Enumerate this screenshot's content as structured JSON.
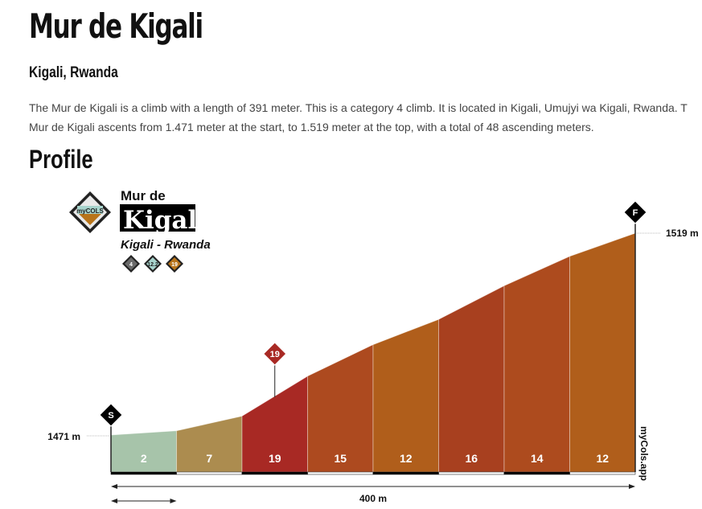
{
  "title": "Mur de Kigali",
  "location": "Kigali, Rwanda",
  "description": [
    "The Mur de Kigali is a climb with a length of 391 meter. This is a category 4 climb. It is located in Kigali, Umujyi wa Kigali, Rwanda. T",
    "Mur de Kigali ascents from 1.471 meter at the start, to 1.519 meter at the top, with a total of 48 ascending meters."
  ],
  "profile_heading": "Profile",
  "card": {
    "line1": "Mur de",
    "line2": "Kigali",
    "subtitle": "Kigali - Rwanda",
    "logo": "myCOLS",
    "badges": [
      {
        "text": "4",
        "color": "#6b6b6b"
      },
      {
        "text": "12.2",
        "color": "#a7d3cc"
      },
      {
        "text": "19",
        "color": "#b8741a"
      }
    ]
  },
  "chart_data": {
    "type": "area",
    "title": "Mur de Kigali",
    "distance_label": "400 m",
    "start_elevation_label": "1471 m",
    "end_elevation_label": "1519 m",
    "start_marker": "S",
    "finish_marker": "F",
    "max_gradient_marker": "19",
    "watermark": "myCols.app",
    "segment_length_m": 50,
    "total_length_m": 400,
    "elevations_m": [
      1471,
      1472,
      1475.5,
      1485,
      1492.5,
      1498.5,
      1506.5,
      1513.5,
      1519
    ],
    "gradients": [
      2,
      7,
      19,
      15,
      12,
      16,
      14,
      12
    ],
    "colors": [
      "#a7c4aa",
      "#ac8c4f",
      "#a82924",
      "#ad4a1f",
      "#b05e1b",
      "#a8401f",
      "#ad4b1e",
      "#b05e1b"
    ]
  }
}
